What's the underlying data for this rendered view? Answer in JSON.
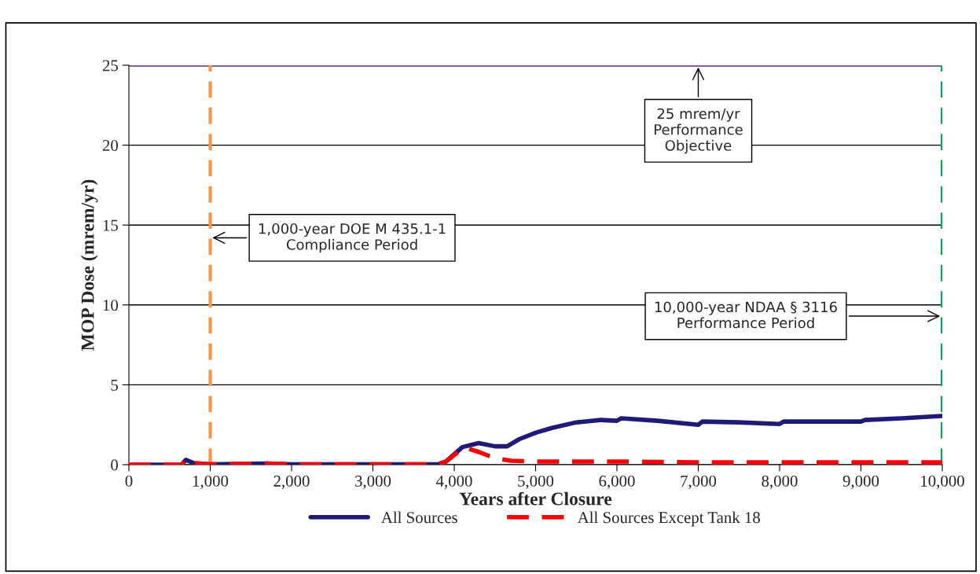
{
  "chart_data": {
    "type": "line",
    "xlabel": "Years after Closure",
    "ylabel": "MOP Dose (mrem/yr)",
    "xlim": [
      0,
      10000
    ],
    "xticks": [
      {
        "value": 0,
        "label": "0"
      },
      {
        "value": 1000,
        "label": "1,000"
      },
      {
        "value": 2000,
        "label": "2,000"
      },
      {
        "value": 3000,
        "label": "3,000"
      },
      {
        "value": 4000,
        "label": "4,000"
      },
      {
        "value": 5000,
        "label": "5,000"
      },
      {
        "value": 6000,
        "label": "6,000"
      },
      {
        "value": 7000,
        "label": "7,000"
      },
      {
        "value": 8000,
        "label": "8,000"
      },
      {
        "value": 9000,
        "label": "9,000"
      },
      {
        "value": 10000,
        "label": "10,000"
      }
    ],
    "ylim": [
      0,
      25
    ],
    "yticks": [
      0,
      5,
      10,
      15,
      20,
      25
    ],
    "grid": "y",
    "legend": "bottom",
    "series": [
      {
        "name": "All Sources",
        "color": "#1f1a7a",
        "line_style": "solid",
        "x": [
          0,
          650,
          700,
          800,
          1000,
          1700,
          2000,
          3800,
          3900,
          4100,
          4300,
          4500,
          4650,
          4800,
          5000,
          5200,
          5500,
          5800,
          6000,
          6050,
          6500,
          7000,
          7050,
          7500,
          8000,
          8050,
          9000,
          9050,
          9500,
          10000
        ],
        "values": [
          0.0,
          0.0,
          0.3,
          0.1,
          0.02,
          0.07,
          0.02,
          0.02,
          0.2,
          1.1,
          1.35,
          1.15,
          1.15,
          1.6,
          2.0,
          2.3,
          2.65,
          2.8,
          2.75,
          2.9,
          2.75,
          2.5,
          2.7,
          2.65,
          2.55,
          2.7,
          2.7,
          2.8,
          2.9,
          3.05
        ]
      },
      {
        "name": "All Sources Except Tank 18",
        "color": "#ff0000",
        "line_style": "dashed",
        "x": [
          0,
          650,
          700,
          800,
          1000,
          1700,
          2000,
          3800,
          3900,
          4100,
          4150,
          4300,
          4500,
          4700,
          5000,
          6000,
          7000,
          10000
        ],
        "values": [
          0.0,
          0.0,
          0.35,
          0.1,
          0.02,
          0.07,
          0.02,
          0.02,
          0.2,
          1.0,
          1.05,
          0.8,
          0.4,
          0.25,
          0.2,
          0.2,
          0.15,
          0.15
        ]
      }
    ],
    "ref_lines": [
      {
        "axis": "y",
        "value": 25,
        "color": "#8064a2",
        "line_style": "solid"
      },
      {
        "axis": "x",
        "value": 1000,
        "color": "#f79646",
        "line_style": "dashed"
      },
      {
        "axis": "x",
        "value": 10000,
        "color": "#00b050",
        "line_style": "dashed"
      }
    ],
    "annotations": [
      {
        "text": "25 mrem/yr\nPerformance\nObjective",
        "x": 7000,
        "y": 25
      },
      {
        "text": "1,000-year DOE M 435.1-1\nCompliance Period",
        "x": 1000,
        "y": 14.2
      },
      {
        "text": "10,000-year NDAA § 3116\nPerformance Period",
        "x": 10000,
        "y": 9.3
      }
    ]
  }
}
